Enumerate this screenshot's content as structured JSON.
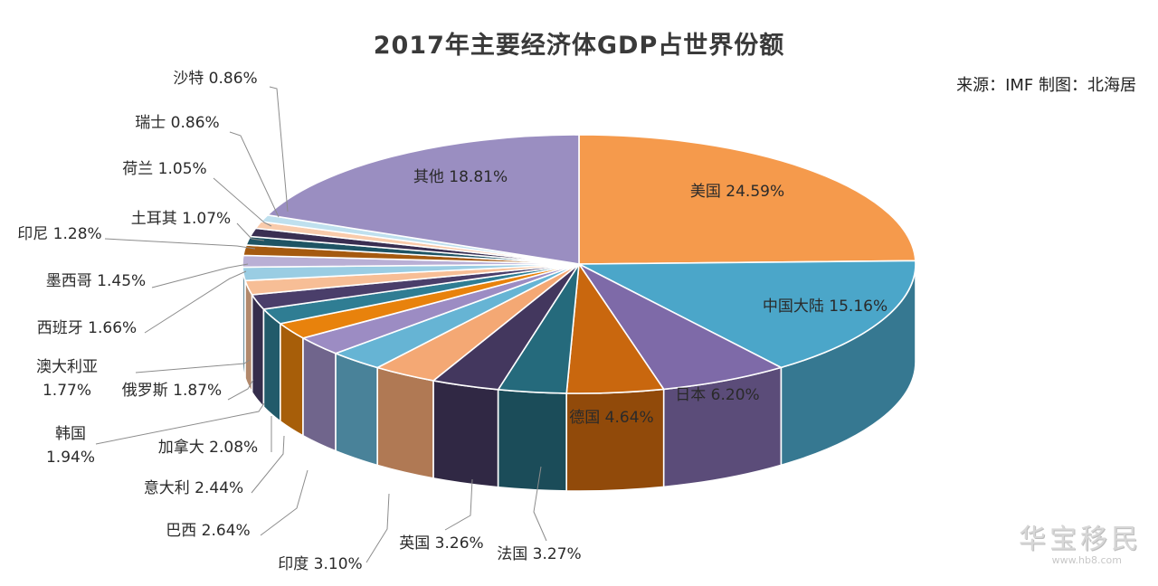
{
  "chart_data": {
    "type": "pie",
    "title": "2017年主要经济体GDP占世界份额",
    "source": "来源：IMF 制图：北海居",
    "unit": "%",
    "slices": [
      {
        "label": "美国",
        "value": 24.59,
        "display": "美国 24.59%",
        "color": "#F59A4C"
      },
      {
        "label": "中国大陆",
        "value": 15.16,
        "display": "中国大陆 15.16%",
        "color": "#4BA6C9"
      },
      {
        "label": "日本",
        "value": 6.2,
        "display": "日本 6.20%",
        "color": "#7E6AA8"
      },
      {
        "label": "德国",
        "value": 4.64,
        "display": "德国 4.64%",
        "color": "#C9670E"
      },
      {
        "label": "法国",
        "value": 3.27,
        "display": "法国 3.27%",
        "color": "#256A7C"
      },
      {
        "label": "英国",
        "value": 3.26,
        "display": "英国 3.26%",
        "color": "#43375E"
      },
      {
        "label": "印度",
        "value": 3.1,
        "display": "印度 3.10%",
        "color": "#F4A874"
      },
      {
        "label": "巴西",
        "value": 2.64,
        "display": "巴西 2.64%",
        "color": "#66B4D4"
      },
      {
        "label": "意大利",
        "value": 2.44,
        "display": "意大利 2.44%",
        "color": "#9C8CC3"
      },
      {
        "label": "加拿大",
        "value": 2.08,
        "display": "加拿大 2.08%",
        "color": "#E8820C"
      },
      {
        "label": "韩国",
        "value": 1.94,
        "display": [
          "韩国",
          "1.94%"
        ],
        "color": "#2F7D93"
      },
      {
        "label": "俄罗斯",
        "value": 1.87,
        "display": "俄罗斯 1.87%",
        "color": "#4A3E6A"
      },
      {
        "label": "澳大利亚",
        "value": 1.77,
        "display": [
          "澳大利亚",
          "1.77%"
        ],
        "color": "#F7BE96"
      },
      {
        "label": "西班牙",
        "value": 1.66,
        "display": "西班牙 1.66%",
        "color": "#9ACDE3"
      },
      {
        "label": "墨西哥",
        "value": 1.45,
        "display": "墨西哥 1.45%",
        "color": "#B9AFD5"
      },
      {
        "label": "印尼",
        "value": 1.28,
        "display": "印尼 1.28%",
        "color": "#A55A10"
      },
      {
        "label": "土耳其",
        "value": 1.07,
        "display": "土耳其 1.07%",
        "color": "#1E5464"
      },
      {
        "label": "荷兰",
        "value": 1.05,
        "display": "荷兰 1.05%",
        "color": "#3A2F52"
      },
      {
        "label": "瑞士",
        "value": 0.86,
        "display": "瑞士 0.86%",
        "color": "#F9CBAB"
      },
      {
        "label": "沙特",
        "value": 0.86,
        "display": "沙特 0.86%",
        "color": "#BFE0EE"
      },
      {
        "label": "其他",
        "value": 18.81,
        "display": "其他 18.81%",
        "color": "#9A8EC1"
      }
    ]
  },
  "watermark": {
    "main": "华宝移民",
    "sub": "www.hb8.com"
  }
}
